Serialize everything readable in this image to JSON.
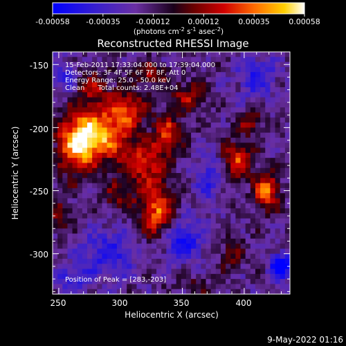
{
  "chart_data": {
    "type": "heatmap",
    "title": "Reconstructed RHESSI Image",
    "xlabel": "Heliocentric X (arcsec)",
    "ylabel": "Heliocentric Y (arcsec)",
    "xlim": [
      245,
      437
    ],
    "ylim": [
      -332,
      -140
    ],
    "x_ticks": [
      250,
      300,
      350,
      400
    ],
    "y_ticks": [
      -150,
      -200,
      -250,
      -300
    ],
    "annotations": [
      "15-Feb-2011 17:33:04.000 to 17:39:04.000",
      "Detectors: 3F 4F 5F 6F 7F 8F, Att 0",
      "Energy Range: 25.0 - 50.0 keV",
      "Clean      Total counts: 2.48E+04"
    ],
    "peak_label": "Position of Peak = [283,-203]",
    "peak_position": [
      283,
      -203
    ],
    "colorbar": {
      "ticks": [
        "-0.00058",
        "-0.00035",
        "-0.00012",
        "0.00012",
        "0.00035",
        "0.00058"
      ],
      "range": [
        -0.00058,
        0.00058
      ],
      "label_main": "(photons cm",
      "label_exp1": "-2",
      "label_mid": " s",
      "label_exp2": "-1",
      "label_end": " asec",
      "label_exp3": "-2",
      "label_close": ")"
    },
    "sources": [
      {
        "x": 282,
        "y": -205,
        "value": 0.00058,
        "sx": 17,
        "sy": 14
      },
      {
        "x": 265,
        "y": -215,
        "value": 0.00046,
        "sx": 11,
        "sy": 16
      },
      {
        "x": 305,
        "y": -185,
        "value": 0.0004,
        "sx": 10,
        "sy": 9
      },
      {
        "x": 278,
        "y": -168,
        "value": 0.00026,
        "sx": 11,
        "sy": 10
      },
      {
        "x": 318,
        "y": -228,
        "value": 0.00036,
        "sx": 13,
        "sy": 12
      },
      {
        "x": 330,
        "y": -265,
        "value": 0.0005,
        "sx": 9,
        "sy": 16
      },
      {
        "x": 338,
        "y": -205,
        "value": 0.00038,
        "sx": 8,
        "sy": 11
      },
      {
        "x": 355,
        "y": -175,
        "value": 0.0003,
        "sx": 9,
        "sy": 8
      },
      {
        "x": 325,
        "y": -158,
        "value": 0.00028,
        "sx": 10,
        "sy": 7
      },
      {
        "x": 300,
        "y": -255,
        "value": 0.00022,
        "sx": 10,
        "sy": 9
      },
      {
        "x": 395,
        "y": -225,
        "value": 0.00042,
        "sx": 8,
        "sy": 10
      },
      {
        "x": 418,
        "y": -250,
        "value": 0.0005,
        "sx": 7,
        "sy": 10
      },
      {
        "x": 405,
        "y": -195,
        "value": 0.00026,
        "sx": 7,
        "sy": 7
      },
      {
        "x": 390,
        "y": -300,
        "value": 0.0002,
        "sx": 8,
        "sy": 8
      },
      {
        "x": 360,
        "y": -325,
        "value": 0.00012,
        "sx": 10,
        "sy": 6
      },
      {
        "x": 250,
        "y": -270,
        "value": 0.00018,
        "sx": 8,
        "sy": 10
      },
      {
        "x": 290,
        "y": -300,
        "value": -0.00028,
        "sx": 16,
        "sy": 14
      },
      {
        "x": 350,
        "y": -290,
        "value": -0.00034,
        "sx": 12,
        "sy": 12
      },
      {
        "x": 410,
        "y": -160,
        "value": -0.00028,
        "sx": 11,
        "sy": 12
      },
      {
        "x": 430,
        "y": -310,
        "value": -0.00055,
        "sx": 6,
        "sy": 7
      },
      {
        "x": 255,
        "y": -160,
        "value": -0.00022,
        "sx": 8,
        "sy": 10
      },
      {
        "x": 370,
        "y": -240,
        "value": -0.00024,
        "sx": 7,
        "sy": 14
      },
      {
        "x": 260,
        "y": -320,
        "value": -0.00022,
        "sx": 10,
        "sy": 8
      }
    ]
  },
  "footer": {
    "date_stamp": "9-May-2022 01:16"
  },
  "colors": {
    "background": "#000000",
    "text": "#ffffff"
  }
}
